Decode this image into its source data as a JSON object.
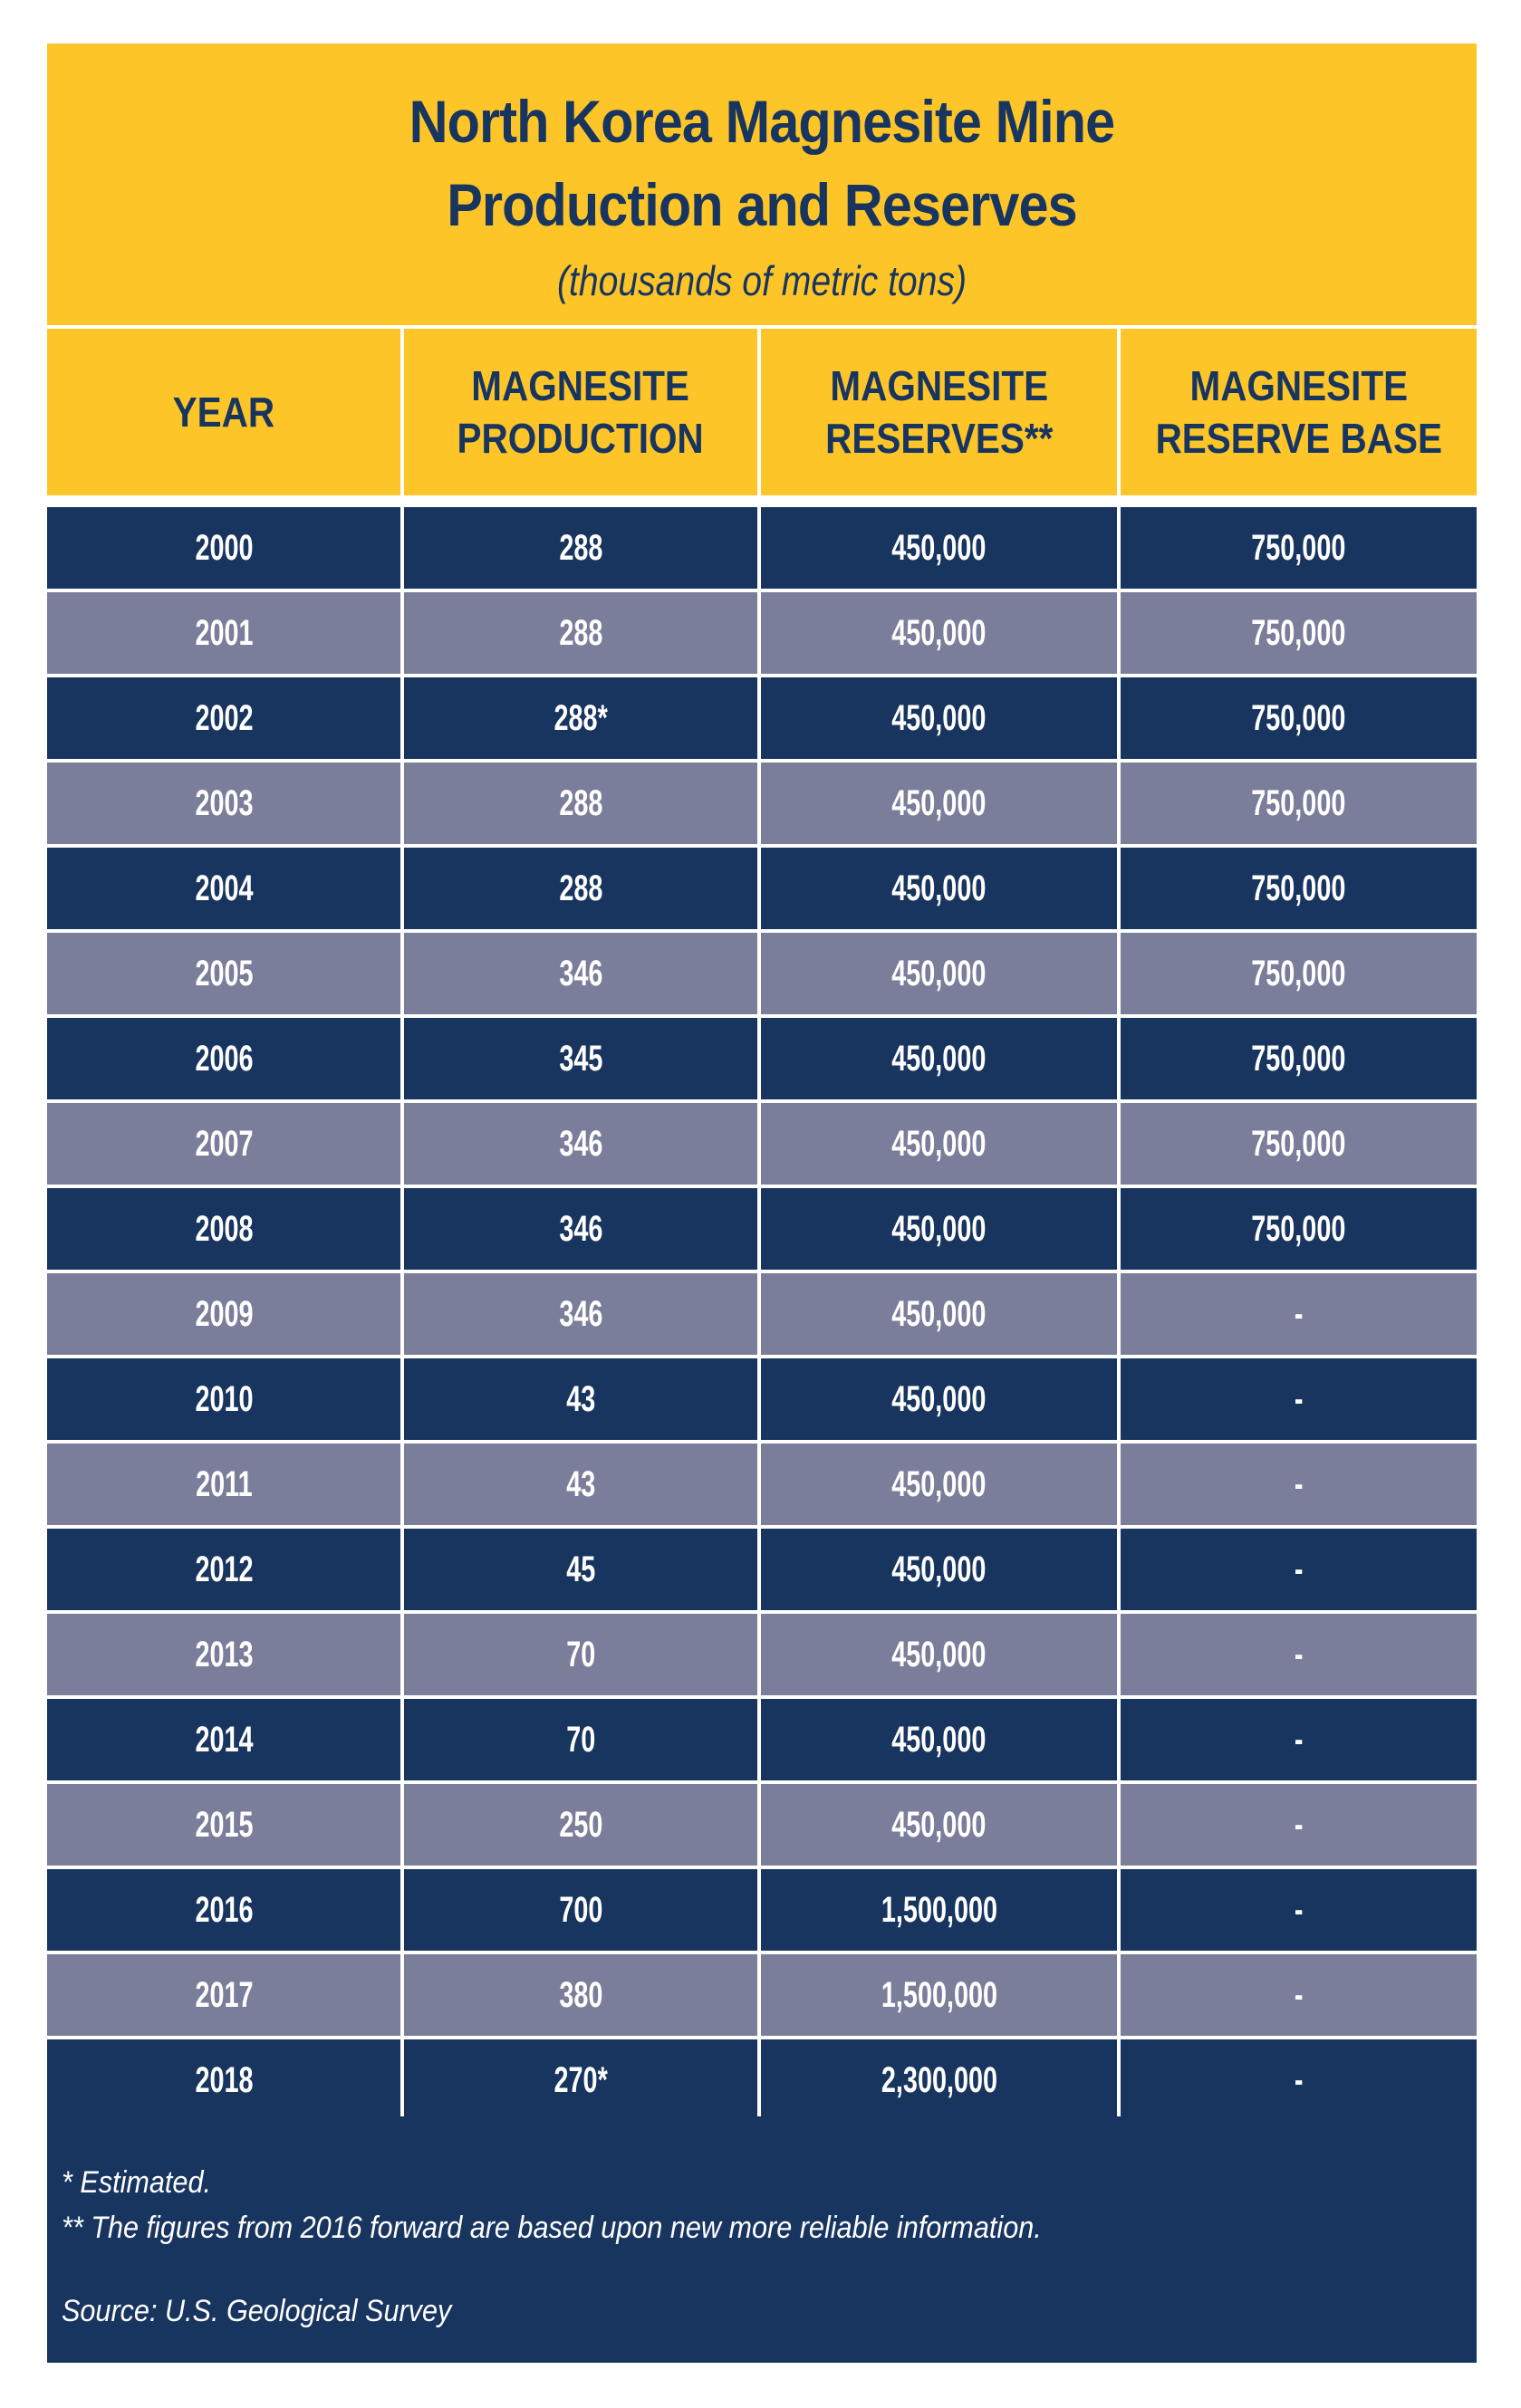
{
  "title": {
    "line1": "North Korea Magnesite Mine",
    "line2": "Production and Reserves",
    "subtitle": "(thousands of metric tons)"
  },
  "colors": {
    "yellow": "#FDC528",
    "navy": "#183560",
    "slate": "#7A7E9A",
    "white": "#FFFFFF"
  },
  "table": {
    "headers": [
      "YEAR",
      "MAGNESITE PRODUCTION",
      "MAGNESITE RESERVES**",
      "MAGNESITE RESERVE BASE"
    ],
    "header_lines": [
      [
        "YEAR"
      ],
      [
        "MAGNESITE",
        "PRODUCTION"
      ],
      [
        "MAGNESITE",
        "RESERVES**"
      ],
      [
        "MAGNESITE",
        "RESERVE BASE"
      ]
    ],
    "rows": [
      [
        "2000",
        "288",
        "450,000",
        "750,000"
      ],
      [
        "2001",
        "288",
        "450,000",
        "750,000"
      ],
      [
        "2002",
        "288*",
        "450,000",
        "750,000"
      ],
      [
        "2003",
        "288",
        "450,000",
        "750,000"
      ],
      [
        "2004",
        "288",
        "450,000",
        "750,000"
      ],
      [
        "2005",
        "346",
        "450,000",
        "750,000"
      ],
      [
        "2006",
        "345",
        "450,000",
        "750,000"
      ],
      [
        "2007",
        "346",
        "450,000",
        "750,000"
      ],
      [
        "2008",
        "346",
        "450,000",
        "750,000"
      ],
      [
        "2009",
        "346",
        "450,000",
        "-"
      ],
      [
        "2010",
        "43",
        "450,000",
        "-"
      ],
      [
        "2011",
        "43",
        "450,000",
        "-"
      ],
      [
        "2012",
        "45",
        "450,000",
        "-"
      ],
      [
        "2013",
        "70",
        "450,000",
        "-"
      ],
      [
        "2014",
        "70",
        "450,000",
        "-"
      ],
      [
        "2015",
        "250",
        "450,000",
        "-"
      ],
      [
        "2016",
        "700",
        "1,500,000",
        "-"
      ],
      [
        "2017",
        "380",
        "1,500,000",
        "-"
      ],
      [
        "2018",
        "270*",
        "2,300,000",
        "-"
      ]
    ]
  },
  "footnotes": {
    "estimated": "* Estimated.",
    "reliable": "** The figures from 2016 forward are based upon new more reliable information.",
    "source": "Source: U.S. Geological Survey"
  }
}
